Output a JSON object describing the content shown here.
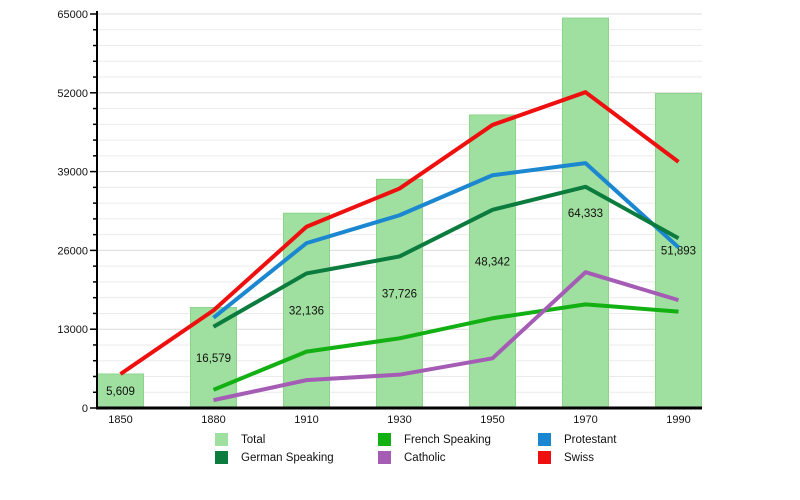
{
  "chart_data": {
    "type": "bar",
    "title": "",
    "xlabel": "",
    "ylabel": "",
    "categories": [
      "1850",
      "1880",
      "1910",
      "1930",
      "1950",
      "1970",
      "1990"
    ],
    "y_axis": {
      "min": 0,
      "max": 65000,
      "major_step": 13000,
      "minor_step": 2600,
      "tick_labels": [
        "0",
        "13000",
        "26000",
        "39000",
        "52000",
        "65000"
      ]
    },
    "grid": "horizontal-only",
    "bars": {
      "name": "Total",
      "color": "#9fdf9f",
      "border_color": "#8bd48b",
      "values": [
        5609,
        16579,
        32136,
        37726,
        48342,
        64333,
        51893
      ],
      "labels": [
        "5,609",
        "16,579",
        "32,136",
        "37,726",
        "48,342",
        "64,333",
        "51,893"
      ]
    },
    "series": [
      {
        "name": "French Speaking",
        "color": "#12b012",
        "values": [
          null,
          3000,
          9300,
          11500,
          14800,
          17100,
          15900
        ]
      },
      {
        "name": "Catholic",
        "color": "#a55cb5",
        "values": [
          null,
          1300,
          4600,
          5500,
          8200,
          22400,
          17800
        ]
      },
      {
        "name": "Protestant",
        "color": "#1b87d0",
        "values": [
          null,
          14900,
          27200,
          31800,
          38400,
          40400,
          26500
        ]
      },
      {
        "name": "German Speaking",
        "color": "#0b7b3e",
        "values": [
          null,
          13400,
          22200,
          25000,
          32700,
          36500,
          28000
        ]
      },
      {
        "name": "Swiss",
        "color": "#ee0f0f",
        "values": [
          5609,
          16100,
          29900,
          36200,
          46700,
          52100,
          40600
        ]
      }
    ],
    "legend": {
      "position": "bottom",
      "items": [
        {
          "label": "Total",
          "color": "#9fdf9f"
        },
        {
          "label": "French Speaking",
          "color": "#12b012"
        },
        {
          "label": "Protestant",
          "color": "#1b87d0"
        },
        {
          "label": "German Speaking",
          "color": "#0b7b3e"
        },
        {
          "label": "Catholic",
          "color": "#a55cb5"
        },
        {
          "label": "Swiss",
          "color": "#ee0f0f"
        }
      ]
    }
  }
}
